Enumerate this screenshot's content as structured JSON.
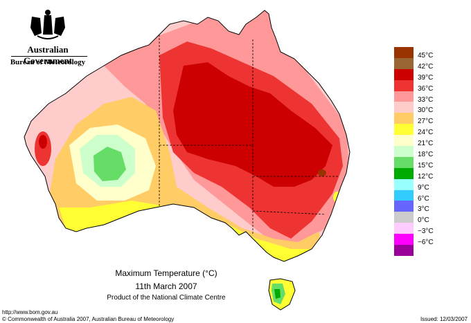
{
  "branding": {
    "gov_name": "Australian Government",
    "bureau": "Bureau of Meteorology"
  },
  "map": {
    "title": "Maximum Temperature (°C)",
    "date": "11th March 2007",
    "product": "Product of the National Climate Centre",
    "region": "Australia"
  },
  "legend": [
    {
      "label": "45°C",
      "color": "#993300"
    },
    {
      "label": "42°C",
      "color": "#996633"
    },
    {
      "label": "39°C",
      "color": "#cc0000"
    },
    {
      "label": "36°C",
      "color": "#ee3333"
    },
    {
      "label": "33°C",
      "color": "#ff9999"
    },
    {
      "label": "30°C",
      "color": "#ffcccc"
    },
    {
      "label": "27°C",
      "color": "#ffcc66"
    },
    {
      "label": "24°C",
      "color": "#ffff33"
    },
    {
      "label": "21°C",
      "color": "#ffffcc"
    },
    {
      "label": "18°C",
      "color": "#ccffcc"
    },
    {
      "label": "15°C",
      "color": "#66dd66"
    },
    {
      "label": "12°C",
      "color": "#00aa00"
    },
    {
      "label": "9°C",
      "color": "#99ffff"
    },
    {
      "label": "6°C",
      "color": "#33ccff"
    },
    {
      "label": "3°C",
      "color": "#6666ff"
    },
    {
      "label": "0°C",
      "color": "#cccccc"
    },
    {
      "label": "−3°C",
      "color": "#ffccff"
    },
    {
      "label": "−6°C",
      "color": "#ff00ff"
    },
    {
      "label": "",
      "color": "#990099"
    }
  ],
  "footer": {
    "url": "http://www.bom.gov.au",
    "copyright": "© Commonwealth of Australia 2007, Australian Bureau of Meteorology",
    "issued": "Issued: 12/03/2007"
  }
}
